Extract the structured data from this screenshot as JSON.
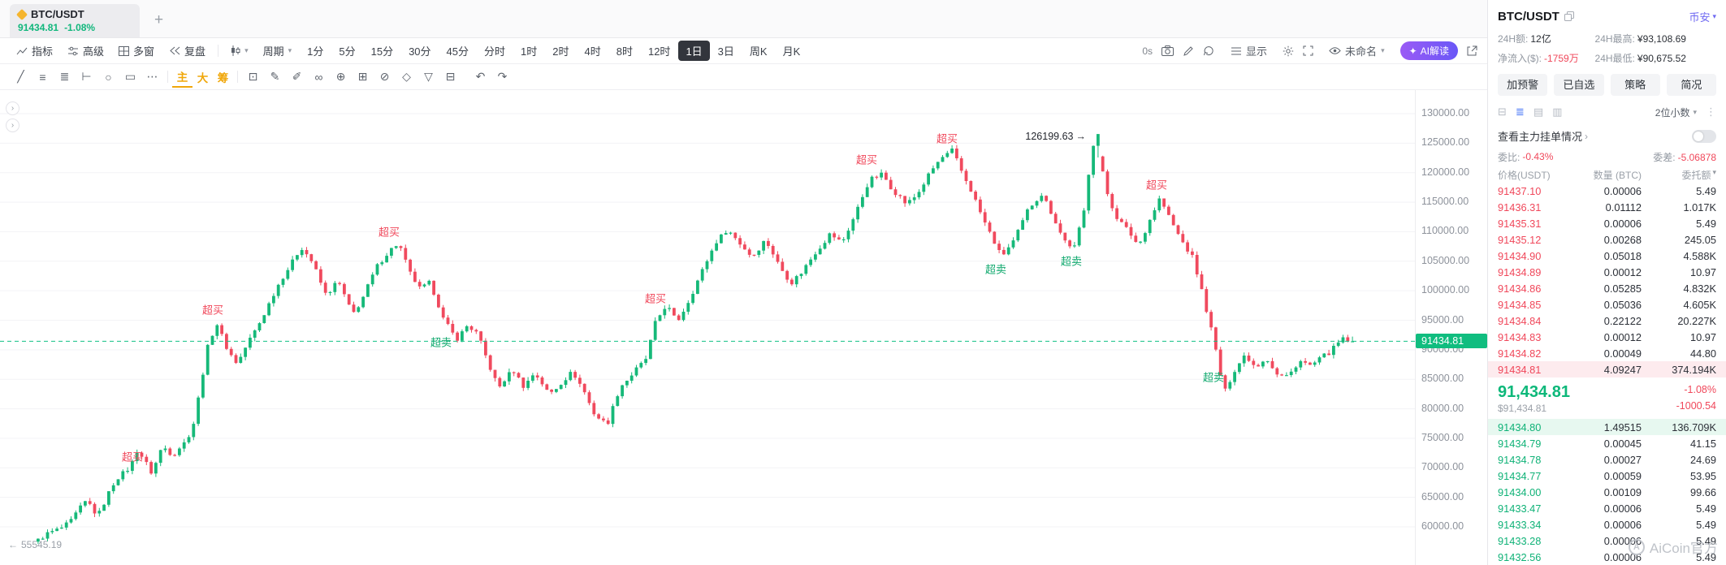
{
  "tabstrip": {
    "tab": {
      "symbol": "BTC/USDT",
      "price": "91434.81",
      "change": "-1.08%"
    },
    "new_tab": "+"
  },
  "toolbar": {
    "items_left": [
      {
        "label": "指标"
      },
      {
        "label": "高级"
      },
      {
        "label": "多窗"
      },
      {
        "label": "复盘"
      }
    ],
    "period": "周期",
    "timeframes": [
      "1分",
      "5分",
      "15分",
      "30分",
      "45分",
      "分时",
      "1时",
      "2时",
      "4时",
      "8时",
      "12时",
      "1日",
      "3日",
      "周K",
      "月K"
    ],
    "active_timeframe": "1日",
    "timer": "0s",
    "display_label": "显示",
    "layout_name": "未命名",
    "ai_button": "AI解读"
  },
  "drawbar": {
    "left_icons": [
      {
        "name": "trend-line-icon",
        "glyph": "╱"
      },
      {
        "name": "horizontal-line-icon",
        "glyph": "≡"
      },
      {
        "name": "fib-retracement-icon",
        "glyph": "≣"
      },
      {
        "name": "anchor-line-icon",
        "glyph": "⊢"
      },
      {
        "name": "ellipse-tool-icon",
        "glyph": "○"
      },
      {
        "name": "rectangle-tool-icon",
        "glyph": "▭"
      },
      {
        "name": "more-tools-icon",
        "glyph": "⋯"
      }
    ],
    "text_tools": [
      {
        "label": "主"
      },
      {
        "label": "大"
      },
      {
        "label": "筹"
      }
    ],
    "right_icons": [
      {
        "name": "dice-icon",
        "glyph": "⊡"
      },
      {
        "name": "pencil-tool-icon",
        "glyph": "✎"
      },
      {
        "name": "brush-tool-icon",
        "glyph": "✐"
      },
      {
        "name": "link-tool-icon",
        "glyph": "∞"
      },
      {
        "name": "pin-tool-icon",
        "glyph": "⊕"
      },
      {
        "name": "grid-tool-icon",
        "glyph": "⊞"
      },
      {
        "name": "hide-drawings-icon",
        "glyph": "⊘"
      },
      {
        "name": "magnet-icon",
        "glyph": "◇"
      },
      {
        "name": "filter-icon",
        "glyph": "▽"
      },
      {
        "name": "trash-icon",
        "glyph": "⊟"
      }
    ],
    "undo_glyph": "↶",
    "redo_glyph": "↷"
  },
  "chart_data": {
    "type": "candlestick",
    "symbol": "BTC/USDT",
    "timeframe": "1日",
    "y_axis": {
      "max": 130000,
      "min": 60000,
      "tick_step": 5000,
      "tick_labels": [
        "130000.00",
        "125000.00",
        "120000.00",
        "115000.00",
        "110000.00",
        "105000.00",
        "100000.00",
        "95000.00",
        "90000.00",
        "85000.00",
        "80000.00",
        "75000.00",
        "70000.00",
        "65000.00",
        "60000.00"
      ]
    },
    "current_price": 91434.81,
    "current_price_label": "91434.81",
    "left_edge_low": "55545.19",
    "peak_price": 126199.63,
    "peak_label": "126199.63",
    "peak_t": 0.801,
    "candle_count": 280,
    "colors": {
      "up": "#16b979",
      "down": "#f04a5e",
      "current_line": "#10c184",
      "grid": "#f3f3f6"
    },
    "price_path": [
      [
        0,
        57500
      ],
      [
        0.008,
        58500
      ],
      [
        0.027,
        61000
      ],
      [
        0.039,
        64500
      ],
      [
        0.047,
        62000
      ],
      [
        0.061,
        68000
      ],
      [
        0.072,
        70500
      ],
      [
        0.077,
        73000
      ],
      [
        0.088,
        69000
      ],
      [
        0.096,
        74000
      ],
      [
        0.104,
        72000
      ],
      [
        0.114,
        74500
      ],
      [
        0.12,
        78000
      ],
      [
        0.13,
        90000
      ],
      [
        0.137,
        94500
      ],
      [
        0.146,
        90000
      ],
      [
        0.153,
        87500
      ],
      [
        0.163,
        92000
      ],
      [
        0.175,
        97000
      ],
      [
        0.189,
        103000
      ],
      [
        0.201,
        107500
      ],
      [
        0.21,
        104500
      ],
      [
        0.22,
        99500
      ],
      [
        0.229,
        101500
      ],
      [
        0.24,
        96000
      ],
      [
        0.248,
        99000
      ],
      [
        0.259,
        104000
      ],
      [
        0.268,
        107000
      ],
      [
        0.275,
        108200
      ],
      [
        0.283,
        103000
      ],
      [
        0.291,
        100500
      ],
      [
        0.299,
        101500
      ],
      [
        0.309,
        95000
      ],
      [
        0.319,
        92000
      ],
      [
        0.327,
        94000
      ],
      [
        0.335,
        92500
      ],
      [
        0.343,
        88000
      ],
      [
        0.351,
        83500
      ],
      [
        0.362,
        86500
      ],
      [
        0.37,
        84000
      ],
      [
        0.378,
        86000
      ],
      [
        0.389,
        82500
      ],
      [
        0.398,
        84500
      ],
      [
        0.407,
        86000
      ],
      [
        0.416,
        83000
      ],
      [
        0.424,
        79000
      ],
      [
        0.433,
        77000
      ],
      [
        0.443,
        84000
      ],
      [
        0.451,
        85500
      ],
      [
        0.462,
        88000
      ],
      [
        0.47,
        95000
      ],
      [
        0.478,
        97500
      ],
      [
        0.486,
        94500
      ],
      [
        0.496,
        99000
      ],
      [
        0.506,
        103500
      ],
      [
        0.516,
        108500
      ],
      [
        0.524,
        110500
      ],
      [
        0.533,
        108000
      ],
      [
        0.543,
        106000
      ],
      [
        0.553,
        108500
      ],
      [
        0.563,
        104500
      ],
      [
        0.573,
        101500
      ],
      [
        0.581,
        103000
      ],
      [
        0.592,
        107000
      ],
      [
        0.602,
        109500
      ],
      [
        0.611,
        108000
      ],
      [
        0.622,
        113500
      ],
      [
        0.632,
        118500
      ],
      [
        0.642,
        120000
      ],
      [
        0.65,
        117000
      ],
      [
        0.66,
        114500
      ],
      [
        0.668,
        116500
      ],
      [
        0.677,
        119500
      ],
      [
        0.687,
        122500
      ],
      [
        0.695,
        124000
      ],
      [
        0.703,
        119500
      ],
      [
        0.711,
        116000
      ],
      [
        0.722,
        110500
      ],
      [
        0.732,
        105500
      ],
      [
        0.741,
        108500
      ],
      [
        0.752,
        113500
      ],
      [
        0.763,
        116500
      ],
      [
        0.771,
        113000
      ],
      [
        0.779,
        108500
      ],
      [
        0.787,
        107000
      ],
      [
        0.795,
        114000
      ],
      [
        0.801,
        125300
      ],
      [
        0.807,
        121500
      ],
      [
        0.813,
        116000
      ],
      [
        0.82,
        112500
      ],
      [
        0.828,
        110000
      ],
      [
        0.836,
        107500
      ],
      [
        0.844,
        112000
      ],
      [
        0.852,
        115500
      ],
      [
        0.86,
        112000
      ],
      [
        0.868,
        109000
      ],
      [
        0.877,
        105500
      ],
      [
        0.885,
        99000
      ],
      [
        0.893,
        92000
      ],
      [
        0.901,
        82500
      ],
      [
        0.909,
        86500
      ],
      [
        0.917,
        89500
      ],
      [
        0.925,
        87000
      ],
      [
        0.933,
        88500
      ],
      [
        0.941,
        86000
      ],
      [
        0.95,
        85500
      ],
      [
        0.958,
        88000
      ],
      [
        0.966,
        87500
      ],
      [
        0.974,
        88500
      ],
      [
        0.982,
        89500
      ],
      [
        0.99,
        92000
      ],
      [
        1,
        91435
      ]
    ],
    "annotations": [
      {
        "text": "超买",
        "kind": "overbought",
        "t": 0.073,
        "price": 72000
      },
      {
        "text": "超买",
        "kind": "overbought",
        "t": 0.134,
        "price": 96800
      },
      {
        "text": "超买",
        "kind": "overbought",
        "t": 0.268,
        "price": 110000
      },
      {
        "text": "超卖",
        "kind": "oversold",
        "t": 0.307,
        "price": 91400
      },
      {
        "text": "超买",
        "kind": "overbought",
        "t": 0.47,
        "price": 98800
      },
      {
        "text": "超买",
        "kind": "overbought",
        "t": 0.63,
        "price": 122300
      },
      {
        "text": "超买",
        "kind": "overbought",
        "t": 0.691,
        "price": 125900
      },
      {
        "text": "超卖",
        "kind": "oversold",
        "t": 0.728,
        "price": 103800
      },
      {
        "text": "超卖",
        "kind": "oversold",
        "t": 0.785,
        "price": 105100
      },
      {
        "text": "超买",
        "kind": "overbought",
        "t": 0.85,
        "price": 118000
      },
      {
        "text": "超卖",
        "kind": "oversold",
        "t": 0.893,
        "price": 85500
      }
    ]
  },
  "panel": {
    "header": {
      "symbol": "BTC/USDT",
      "exchange": "币安"
    },
    "stats": [
      {
        "label": "24H额:",
        "value": "12亿",
        "tone": "normal"
      },
      {
        "label": "24H最高:",
        "value": "¥93,108.69",
        "tone": "normal"
      },
      {
        "label": "净流入($):",
        "value": "-1759万",
        "tone": "down"
      },
      {
        "label": "24H最低:",
        "value": "¥90,675.52",
        "tone": "normal"
      }
    ],
    "buttons": [
      "加预警",
      "已自选",
      "策略",
      "简况"
    ],
    "view_icons": [
      {
        "name": "orderbook-both-icon",
        "glyph": "⊟",
        "active": false
      },
      {
        "name": "orderbook-list-icon",
        "glyph": "≣",
        "active": true
      },
      {
        "name": "orderbook-asks-icon",
        "glyph": "▤",
        "active": false
      },
      {
        "name": "orderbook-bids-icon",
        "glyph": "▥",
        "active": false
      }
    ],
    "decimals": "2位小数",
    "depth_link": "查看主力挂单情况",
    "weibi_label": "委比:",
    "weibi_value": "-0.43%",
    "weicha_label": "委差:",
    "weicha_value": "-5.06878",
    "table_headers": [
      "价格(USDT)",
      "数量 (BTC)",
      "委托额"
    ],
    "asks": [
      [
        "91437.10",
        "0.00006",
        "5.49"
      ],
      [
        "91436.31",
        "0.01112",
        "1.017K"
      ],
      [
        "91435.31",
        "0.00006",
        "5.49"
      ],
      [
        "91435.12",
        "0.00268",
        "245.05"
      ],
      [
        "91434.90",
        "0.05018",
        "4.588K"
      ],
      [
        "91434.89",
        "0.00012",
        "10.97"
      ],
      [
        "91434.86",
        "0.05285",
        "4.832K"
      ],
      [
        "91434.85",
        "0.05036",
        "4.605K"
      ],
      [
        "91434.84",
        "0.22122",
        "20.227K"
      ],
      [
        "91434.83",
        "0.00012",
        "10.97"
      ],
      [
        "91434.82",
        "0.00049",
        "44.80"
      ],
      [
        "91434.81",
        "4.09247",
        "374.194K"
      ]
    ],
    "ask_highlight_index": 11,
    "bids": [
      [
        "91434.80",
        "1.49515",
        "136.709K"
      ],
      [
        "91434.79",
        "0.00045",
        "41.15"
      ],
      [
        "91434.78",
        "0.00027",
        "24.69"
      ],
      [
        "91434.77",
        "0.00059",
        "53.95"
      ],
      [
        "91434.00",
        "0.00109",
        "99.66"
      ],
      [
        "91433.47",
        "0.00006",
        "5.49"
      ],
      [
        "91433.34",
        "0.00006",
        "5.49"
      ],
      [
        "91433.28",
        "0.00006",
        "5.49"
      ],
      [
        "91432.56",
        "0.00006",
        "5.49"
      ]
    ],
    "bid_highlight_index": 0,
    "last": {
      "price": "91,434.81",
      "usd": "$91,434.81",
      "change_pct": "-1.08%",
      "change_abs": "-1000.54"
    }
  },
  "watermark": {
    "text": "AiCoin官方"
  }
}
